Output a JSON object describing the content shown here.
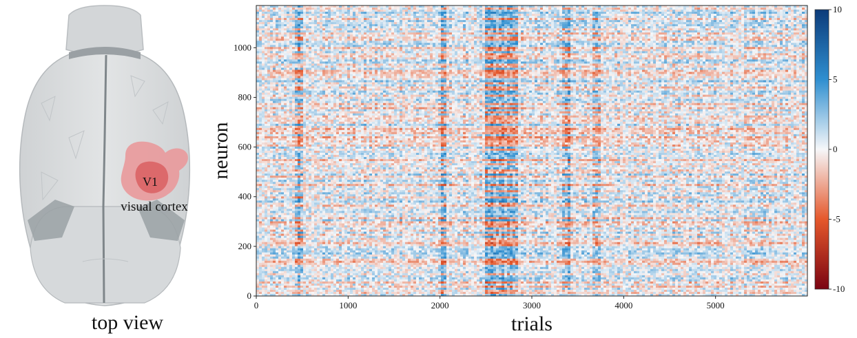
{
  "brain_figure": {
    "region_label": "V1",
    "area_label": "visual cortex",
    "caption": "top view"
  },
  "chart_data": {
    "type": "heatmap",
    "xlabel": "trials",
    "ylabel": "neuron",
    "xlim": [
      0,
      6000
    ],
    "ylim": [
      0,
      1170
    ],
    "xticks": [
      0,
      1000,
      2000,
      3000,
      4000,
      5000
    ],
    "yticks": [
      0,
      200,
      400,
      600,
      800,
      1000
    ],
    "colorbar": {
      "range": [
        -10,
        10
      ],
      "ticks": [
        10,
        5,
        0,
        -5,
        -10
      ],
      "colors_high_to_low": [
        "#0c3b7a",
        "#2f8fd0",
        "#f6f7f9",
        "#e5582c",
        "#7a0412"
      ]
    }
  }
}
